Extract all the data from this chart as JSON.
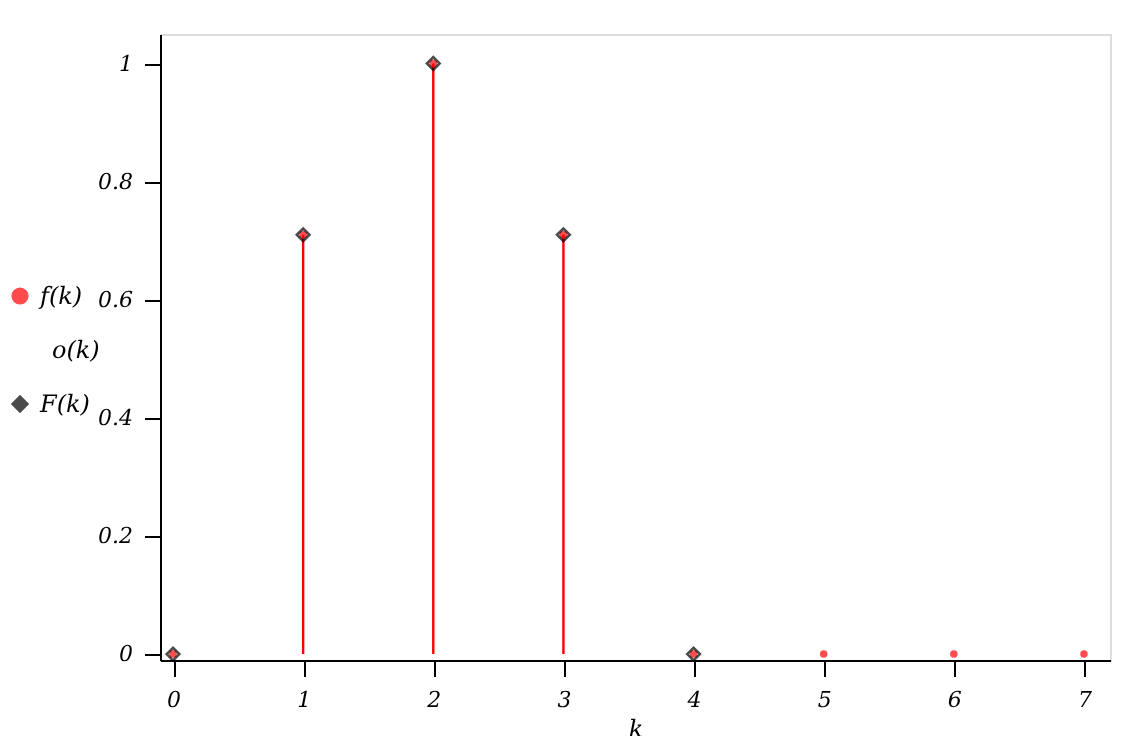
{
  "chart_data": {
    "type": "lollipop",
    "xlabel": "k",
    "x": [
      0,
      1,
      2,
      3,
      4,
      5,
      6,
      7
    ],
    "series": [
      {
        "name": "f(k)",
        "color": "#ff0000",
        "values": [
          0,
          0.71,
          1,
          0.71,
          0,
          0,
          0,
          0
        ]
      },
      {
        "name": "F(k)",
        "color": "#000000",
        "type": "scatter",
        "marker": "diamond",
        "x": [
          0,
          1,
          2,
          3,
          4
        ],
        "values": [
          0,
          0.71,
          1,
          0.71,
          0
        ]
      }
    ],
    "annotations": [
      "o(k)"
    ],
    "xlim": [
      -0.1,
      7.2
    ],
    "ylim": [
      -0.01,
      1.05
    ],
    "xticks": [
      0,
      1,
      2,
      3,
      4,
      5,
      6,
      7
    ],
    "yticks": [
      0,
      0.2,
      0.4,
      0.6,
      0.8,
      1
    ],
    "grid": false,
    "legend": "left"
  }
}
